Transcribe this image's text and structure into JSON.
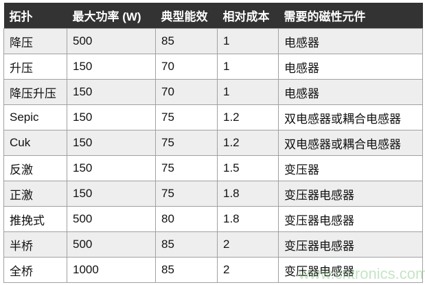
{
  "table": {
    "headers": [
      "拓扑",
      "最大功率 (W)",
      "典型能效",
      "相对成本",
      "需要的磁性元件"
    ],
    "rows": [
      [
        "降压",
        "500",
        "85",
        "1",
        "电感器"
      ],
      [
        "升压",
        "150",
        "70",
        "1",
        "电感器"
      ],
      [
        "降压升压",
        "150",
        "70",
        "1",
        "电感器"
      ],
      [
        "Sepic",
        "150",
        "75",
        "1.2",
        "双电感器或耦合电感器"
      ],
      [
        "Cuk",
        "150",
        "75",
        "1.2",
        "双电感器或耦合电感器"
      ],
      [
        "反激",
        "150",
        "75",
        "1.5",
        "变压器"
      ],
      [
        "正激",
        "150",
        "75",
        "1.8",
        "变压器电感器"
      ],
      [
        "推挽式",
        "500",
        "80",
        "1.8",
        "变压器电感器"
      ],
      [
        "半桥",
        "500",
        "85",
        "2",
        "变压器电感器"
      ],
      [
        "全桥",
        "1000",
        "85",
        "2",
        "变压器电感器"
      ]
    ]
  },
  "watermark": "www.cntronics.com",
  "colors": {
    "header_bg": "#333333",
    "row_alt": "#eeeeee",
    "border": "#a0a0a0"
  }
}
